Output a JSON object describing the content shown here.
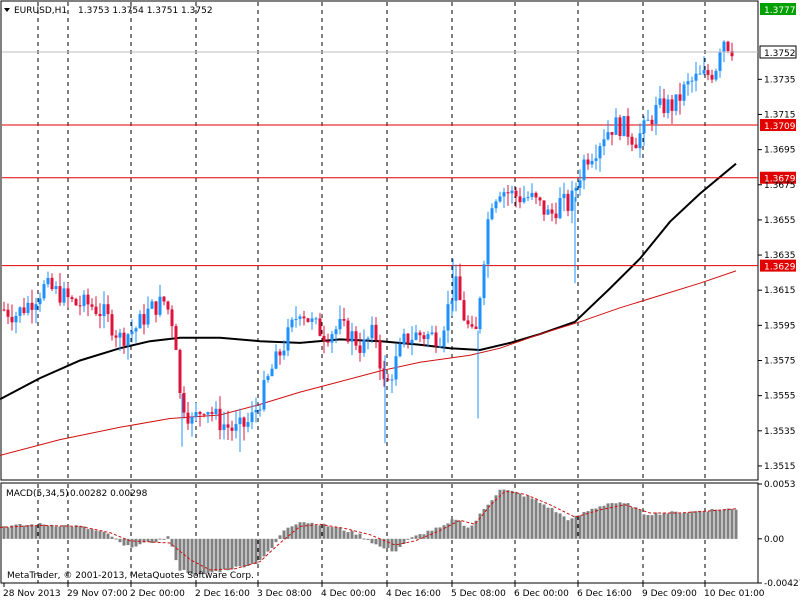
{
  "header": {
    "symbol": "EURUSD,H1",
    "ohlc": "1.3753 1.3754 1.3751 1.3752"
  },
  "macd_label": {
    "title": "MACD(5,34,5)",
    "values": "0.00282 0.00298"
  },
  "copyright": "MetaTrader, © 2001-2013, MetaQuotes Software Corp.",
  "colors": {
    "background": "#ffffff",
    "grid": "#000000",
    "bull_candle": "#1e90ff",
    "bear_candle": "#dc143c",
    "ma_slow": "#000000",
    "ma_fast": "#d01010",
    "hline": "#e00000",
    "macd_hist": "#808080",
    "macd_signal": "#d01010",
    "current_price_label": "#ffffff",
    "top_price_label": "#00a000"
  },
  "chart_data": [
    {
      "type": "candlestick",
      "grid": true,
      "y_ticks": [
        "1.3515",
        "1.3535",
        "1.3555",
        "1.3575",
        "1.3595",
        "1.3615",
        "1.3635",
        "1.3655",
        "1.3675",
        "1.3695",
        "1.3715",
        "1.3735"
      ],
      "ylim": [
        1.3507,
        1.3779
      ],
      "x_ticks": [
        "28 Nov 2013",
        "29 Nov 07:00",
        "2 Dec 00:00",
        "2 Dec 16:00",
        "3 Dec 08:00",
        "4 Dec 00:00",
        "4 Dec 16:00",
        "5 Dec 08:00",
        "6 Dec 00:00",
        "6 Dec 16:00",
        "9 Dec 09:00",
        "10 Dec 01:00"
      ],
      "current_price": "1.3752",
      "top_price": "1.3777",
      "horizontal_lines": [
        {
          "value": 1.3709,
          "label": "1.3709"
        },
        {
          "value": 1.3679,
          "label": "1.3679"
        },
        {
          "value": 1.3629,
          "label": "1.3629"
        }
      ],
      "series": [
        {
          "kind": "moving_average_slow",
          "points": [
            [
              0,
              1.3553
            ],
            [
              40,
              1.3565
            ],
            [
              80,
              1.3575
            ],
            [
              120,
              1.3582
            ],
            [
              150,
              1.3586
            ],
            [
              180,
              1.3588
            ],
            [
              220,
              1.3588
            ],
            [
              260,
              1.3586
            ],
            [
              300,
              1.3585
            ],
            [
              340,
              1.3587
            ],
            [
              380,
              1.3586
            ],
            [
              420,
              1.3584
            ],
            [
              450,
              1.3582
            ],
            [
              480,
              1.3581
            ],
            [
              510,
              1.3585
            ],
            [
              540,
              1.359
            ],
            [
              575,
              1.3597
            ],
            [
              610,
              1.3616
            ],
            [
              640,
              1.3633
            ],
            [
              670,
              1.3654
            ],
            [
              700,
              1.367
            ],
            [
              736,
              1.3687
            ]
          ]
        },
        {
          "kind": "moving_average_fast",
          "points": [
            [
              0,
              1.3521
            ],
            [
              60,
              1.353
            ],
            [
              120,
              1.3537
            ],
            [
              170,
              1.3542
            ],
            [
              220,
              1.3544
            ],
            [
              260,
              1.355
            ],
            [
              300,
              1.3557
            ],
            [
              340,
              1.3563
            ],
            [
              380,
              1.3569
            ],
            [
              420,
              1.3574
            ],
            [
              470,
              1.3578
            ],
            [
              500,
              1.3582
            ],
            [
              540,
              1.359
            ],
            [
              580,
              1.3597
            ],
            [
              620,
              1.3605
            ],
            [
              660,
              1.3612
            ],
            [
              700,
              1.3619
            ],
            [
              736,
              1.3626
            ]
          ]
        }
      ],
      "candle_anchors": [
        [
          4,
          1.3604
        ],
        [
          15,
          1.3601
        ],
        [
          30,
          1.3608
        ],
        [
          45,
          1.3617
        ],
        [
          60,
          1.3613
        ],
        [
          75,
          1.3607
        ],
        [
          90,
          1.3607
        ],
        [
          105,
          1.3601
        ],
        [
          120,
          1.3588
        ],
        [
          135,
          1.3593
        ],
        [
          150,
          1.3604
        ],
        [
          165,
          1.3609
        ],
        [
          175,
          1.3593
        ],
        [
          180,
          1.3555
        ],
        [
          192,
          1.354
        ],
        [
          205,
          1.355
        ],
        [
          220,
          1.354
        ],
        [
          235,
          1.3535
        ],
        [
          250,
          1.354
        ],
        [
          262,
          1.3555
        ],
        [
          272,
          1.357
        ],
        [
          285,
          1.3585
        ],
        [
          300,
          1.3605
        ],
        [
          312,
          1.3596
        ],
        [
          325,
          1.359
        ],
        [
          340,
          1.3594
        ],
        [
          352,
          1.3589
        ],
        [
          362,
          1.3582
        ],
        [
          375,
          1.3592
        ],
        [
          385,
          1.3558
        ],
        [
          395,
          1.3573
        ],
        [
          405,
          1.3587
        ],
        [
          418,
          1.359
        ],
        [
          430,
          1.3589
        ],
        [
          440,
          1.3589
        ],
        [
          447,
          1.3603
        ],
        [
          455,
          1.3619
        ],
        [
          465,
          1.3598
        ],
        [
          475,
          1.3585
        ],
        [
          482,
          1.3625
        ],
        [
          490,
          1.3665
        ],
        [
          500,
          1.3673
        ],
        [
          510,
          1.367
        ],
        [
          520,
          1.3668
        ],
        [
          530,
          1.3668
        ],
        [
          540,
          1.3663
        ],
        [
          550,
          1.3657
        ],
        [
          560,
          1.3665
        ],
        [
          570,
          1.3663
        ],
        [
          578,
          1.3678
        ],
        [
          585,
          1.369
        ],
        [
          595,
          1.3695
        ],
        [
          605,
          1.3705
        ],
        [
          615,
          1.3709
        ],
        [
          625,
          1.3708
        ],
        [
          635,
          1.37
        ],
        [
          645,
          1.3707
        ],
        [
          655,
          1.3717
        ],
        [
          665,
          1.372
        ],
        [
          675,
          1.372
        ],
        [
          685,
          1.373
        ],
        [
          695,
          1.3735
        ],
        [
          705,
          1.3737
        ],
        [
          715,
          1.374
        ],
        [
          722,
          1.376
        ],
        [
          728,
          1.3755
        ],
        [
          734,
          1.3752
        ]
      ]
    },
    {
      "type": "macd",
      "y_ticks": [
        "0.0053",
        "0.00",
        "-0.00427"
      ],
      "ylim": [
        -0.00427,
        0.0053
      ],
      "hist_anchors": [
        [
          0,
          0.0012
        ],
        [
          40,
          0.0014
        ],
        [
          80,
          0.0012
        ],
        [
          110,
          0.0004
        ],
        [
          125,
          -0.0008
        ],
        [
          150,
          -0.0004
        ],
        [
          168,
          0.0002
        ],
        [
          180,
          -0.003
        ],
        [
          200,
          -0.0035
        ],
        [
          225,
          -0.003
        ],
        [
          255,
          -0.0024
        ],
        [
          270,
          -0.0012
        ],
        [
          285,
          0.001
        ],
        [
          300,
          0.0017
        ],
        [
          320,
          0.0014
        ],
        [
          340,
          0.001
        ],
        [
          360,
          0.0004
        ],
        [
          380,
          -0.0008
        ],
        [
          395,
          -0.0012
        ],
        [
          410,
          0.0
        ],
        [
          430,
          0.0008
        ],
        [
          445,
          0.0012
        ],
        [
          455,
          0.002
        ],
        [
          470,
          0.001
        ],
        [
          485,
          0.003
        ],
        [
          500,
          0.0048
        ],
        [
          515,
          0.0045
        ],
        [
          530,
          0.004
        ],
        [
          550,
          0.003
        ],
        [
          570,
          0.0018
        ],
        [
          590,
          0.0028
        ],
        [
          610,
          0.0035
        ],
        [
          630,
          0.0033
        ],
        [
          645,
          0.0024
        ],
        [
          665,
          0.0025
        ],
        [
          690,
          0.0026
        ],
        [
          710,
          0.0028
        ],
        [
          736,
          0.0029
        ]
      ],
      "signal_anchors": [
        [
          0,
          0.0011
        ],
        [
          40,
          0.0013
        ],
        [
          80,
          0.0012
        ],
        [
          110,
          0.0006
        ],
        [
          130,
          -0.0002
        ],
        [
          150,
          -0.0003
        ],
        [
          170,
          -0.0004
        ],
        [
          190,
          -0.002
        ],
        [
          210,
          -0.003
        ],
        [
          235,
          -0.0029
        ],
        [
          260,
          -0.0022
        ],
        [
          280,
          -0.0004
        ],
        [
          300,
          0.0012
        ],
        [
          320,
          0.0014
        ],
        [
          345,
          0.001
        ],
        [
          370,
          0.0004
        ],
        [
          395,
          -0.0006
        ],
        [
          415,
          -0.0002
        ],
        [
          440,
          0.0008
        ],
        [
          460,
          0.0018
        ],
        [
          475,
          0.0014
        ],
        [
          490,
          0.0032
        ],
        [
          505,
          0.0046
        ],
        [
          525,
          0.0043
        ],
        [
          550,
          0.0033
        ],
        [
          575,
          0.0021
        ],
        [
          600,
          0.0028
        ],
        [
          625,
          0.0033
        ],
        [
          650,
          0.0025
        ],
        [
          680,
          0.0025
        ],
        [
          710,
          0.0027
        ],
        [
          736,
          0.0029
        ]
      ]
    }
  ]
}
